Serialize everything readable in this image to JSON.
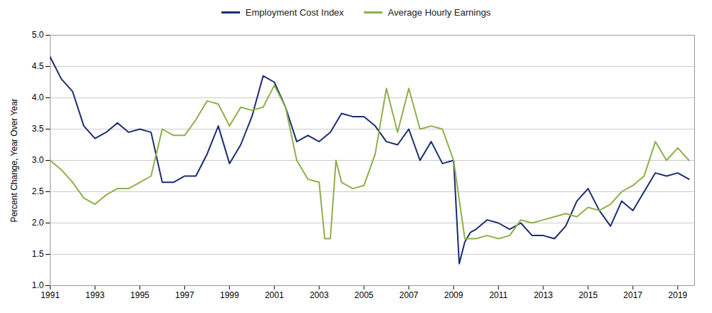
{
  "chart_data": {
    "type": "line",
    "ylabel": "Percent Change, Year Over Year",
    "xlim": [
      1991,
      2019.75
    ],
    "xticks": [
      1991,
      1993,
      1995,
      1997,
      1999,
      2001,
      2003,
      2005,
      2007,
      2009,
      2011,
      2013,
      2015,
      2017,
      2019
    ],
    "ylim": [
      1.0,
      5.0
    ],
    "yticks": [
      {
        "value": 1.0,
        "label": "1.0"
      },
      1.5,
      {
        "value": 2.0,
        "label": "2.0"
      },
      2.5,
      {
        "value": 3.0,
        "label": "3.0"
      },
      3.5,
      {
        "value": 4.0,
        "label": "4.0"
      },
      4.5,
      {
        "value": 5.0,
        "label": "5.0"
      }
    ],
    "grid": true,
    "legend": "top",
    "series": [
      {
        "name": "Employment Cost Index",
        "color": "#1a2e6e",
        "x": [
          1991.0,
          1991.5,
          1992.0,
          1992.5,
          1993.0,
          1993.5,
          1994.0,
          1994.5,
          1995.0,
          1995.5,
          1996.0,
          1996.5,
          1997.0,
          1997.5,
          1998.0,
          1998.5,
          1999.0,
          1999.5,
          2000.0,
          2000.5,
          2001.0,
          2001.5,
          2002.0,
          2002.5,
          2003.0,
          2003.5,
          2004.0,
          2004.5,
          2005.0,
          2005.5,
          2006.0,
          2006.5,
          2007.0,
          2007.5,
          2008.0,
          2008.5,
          2009.0,
          2009.25,
          2009.5,
          2009.75,
          2010.0,
          2010.5,
          2011.0,
          2011.5,
          2012.0,
          2012.5,
          2013.0,
          2013.5,
          2014.0,
          2014.5,
          2015.0,
          2015.5,
          2016.0,
          2016.5,
          2017.0,
          2017.5,
          2018.0,
          2018.5,
          2019.0,
          2019.5
        ],
        "values": [
          4.65,
          4.3,
          4.1,
          3.55,
          3.35,
          3.45,
          3.6,
          3.45,
          3.5,
          3.45,
          2.65,
          2.65,
          2.75,
          2.75,
          3.1,
          3.55,
          2.95,
          3.25,
          3.7,
          4.35,
          4.25,
          3.85,
          3.3,
          3.4,
          3.3,
          3.45,
          3.75,
          3.7,
          3.7,
          3.55,
          3.3,
          3.25,
          3.5,
          3.0,
          3.3,
          2.95,
          3.0,
          1.35,
          1.7,
          1.85,
          1.9,
          2.05,
          2.0,
          1.9,
          2.0,
          1.8,
          1.8,
          1.75,
          1.95,
          2.35,
          2.55,
          2.2,
          1.95,
          2.35,
          2.2,
          2.5,
          2.8,
          2.75,
          2.8,
          2.7
        ]
      },
      {
        "name": "Average Hourly Earnings",
        "color": "#8db04a",
        "x": [
          1991.0,
          1991.5,
          1992.0,
          1992.5,
          1993.0,
          1993.5,
          1994.0,
          1994.5,
          1995.0,
          1995.5,
          1996.0,
          1996.5,
          1997.0,
          1997.5,
          1998.0,
          1998.5,
          1999.0,
          1999.5,
          2000.0,
          2000.5,
          2001.0,
          2001.5,
          2002.0,
          2002.5,
          2003.0,
          2003.25,
          2003.5,
          2003.75,
          2004.0,
          2004.5,
          2005.0,
          2005.5,
          2006.0,
          2006.5,
          2007.0,
          2007.5,
          2008.0,
          2008.5,
          2009.0,
          2009.5,
          2010.0,
          2010.5,
          2011.0,
          2011.5,
          2012.0,
          2012.5,
          2013.0,
          2013.5,
          2014.0,
          2014.5,
          2015.0,
          2015.5,
          2016.0,
          2016.5,
          2017.0,
          2017.5,
          2018.0,
          2018.5,
          2019.0,
          2019.5
        ],
        "values": [
          3.0,
          2.85,
          2.65,
          2.4,
          2.3,
          2.45,
          2.55,
          2.55,
          2.65,
          2.75,
          3.5,
          3.4,
          3.4,
          3.65,
          3.95,
          3.9,
          3.55,
          3.85,
          3.8,
          3.85,
          4.2,
          3.85,
          3.0,
          2.7,
          2.65,
          1.75,
          1.75,
          3.0,
          2.65,
          2.55,
          2.6,
          3.1,
          4.15,
          3.45,
          4.15,
          3.5,
          3.55,
          3.5,
          3.0,
          1.75,
          1.75,
          1.8,
          1.75,
          1.8,
          2.05,
          2.0,
          2.05,
          2.1,
          2.15,
          2.1,
          2.25,
          2.2,
          2.3,
          2.5,
          2.6,
          2.75,
          3.3,
          3.0,
          3.2,
          3.0
        ]
      }
    ]
  }
}
